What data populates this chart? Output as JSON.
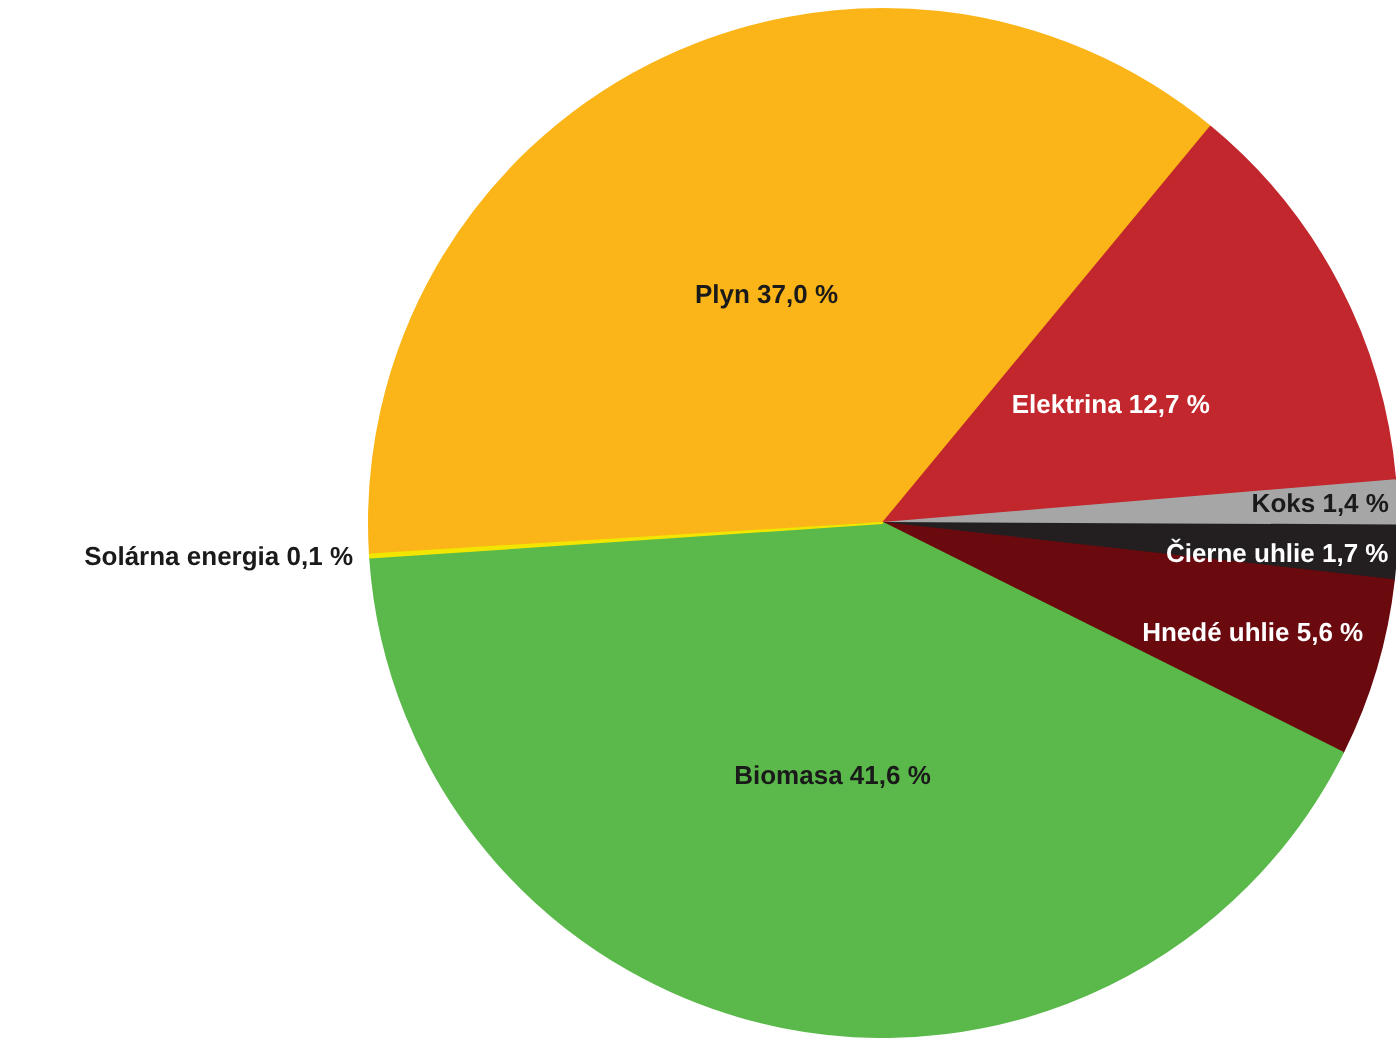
{
  "chart_data": {
    "type": "pie",
    "categories": [
      "Plyn",
      "Elektrina",
      "Koks",
      "Čierne uhlie",
      "Hnedé uhlie",
      "Biomasa",
      "Solárna energia"
    ],
    "values": [
      37.0,
      12.7,
      1.4,
      1.7,
      5.6,
      41.6,
      0.1
    ],
    "value_labels": [
      "37,0 %",
      "12,7 %",
      "1,4 %",
      "1,7 %",
      "5,6 %",
      "41,6 %",
      "0,1 %"
    ],
    "colors": [
      "#fbb518",
      "#c1272d",
      "#a6a6a6",
      "#231f20",
      "#6b0a0e",
      "#5ab94a",
      "#f2e600"
    ]
  }
}
